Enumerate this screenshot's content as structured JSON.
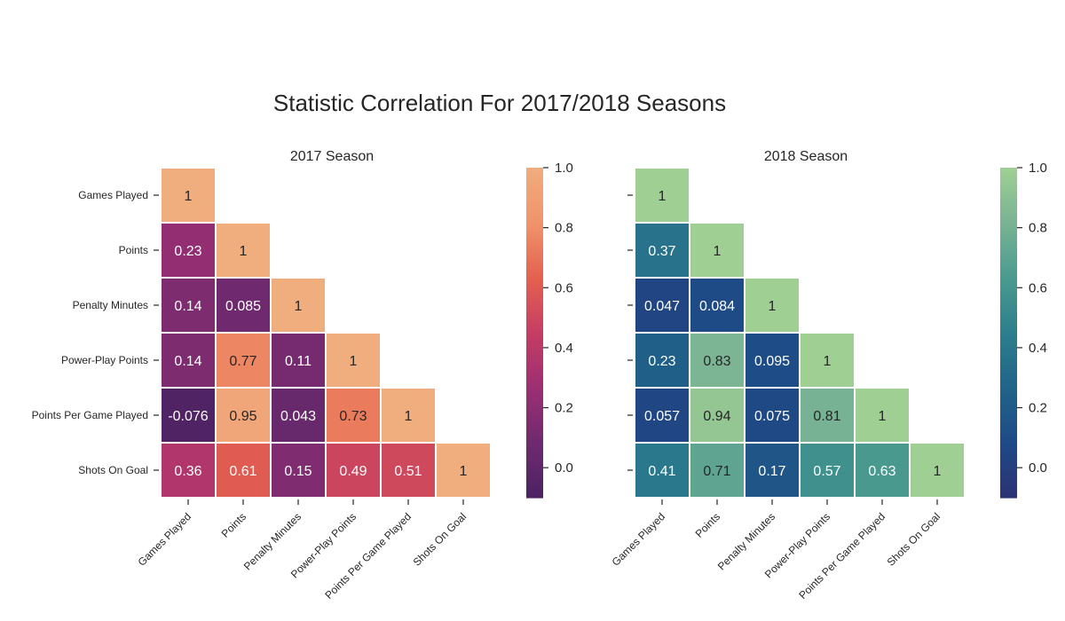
{
  "title": "Statistic Correlation For 2017/2018 Seasons",
  "labels": [
    "Games Played",
    "Points",
    "Penalty Minutes",
    "Power-Play Points",
    "Points Per Game Played",
    "Shots On Goal"
  ],
  "chart_data": [
    {
      "type": "heatmap",
      "title": "2017 Season",
      "colormap": "flare",
      "vmin": -0.1,
      "vmax": 1.0,
      "colorbar_ticks": [
        "0.0",
        "0.2",
        "0.4",
        "0.6",
        "0.8",
        "1.0"
      ],
      "colorbar_tick_values": [
        0.0,
        0.2,
        0.4,
        0.6,
        0.8,
        1.0
      ],
      "values": [
        [
          1
        ],
        [
          0.23,
          1
        ],
        [
          0.14,
          0.085,
          1
        ],
        [
          0.14,
          0.77,
          0.11,
          1
        ],
        [
          -0.076,
          0.95,
          0.043,
          0.73,
          1
        ],
        [
          0.36,
          0.61,
          0.15,
          0.49,
          0.51,
          1
        ]
      ],
      "display": [
        [
          "1"
        ],
        [
          "0.23",
          "1"
        ],
        [
          "0.14",
          "0.085",
          "1"
        ],
        [
          "0.14",
          "0.77",
          "0.11",
          "1"
        ],
        [
          "-0.076",
          "0.95",
          "0.043",
          "0.73",
          "1"
        ],
        [
          "0.36",
          "0.61",
          "0.15",
          "0.49",
          "0.51",
          "1"
        ]
      ]
    },
    {
      "type": "heatmap",
      "title": "2018 Season",
      "colormap": "crest",
      "vmin": -0.1,
      "vmax": 1.0,
      "colorbar_ticks": [
        "0.0",
        "0.2",
        "0.4",
        "0.6",
        "0.8",
        "1.0"
      ],
      "colorbar_tick_values": [
        0.0,
        0.2,
        0.4,
        0.6,
        0.8,
        1.0
      ],
      "values": [
        [
          1
        ],
        [
          0.37,
          1
        ],
        [
          0.047,
          0.084,
          1
        ],
        [
          0.23,
          0.83,
          0.095,
          1
        ],
        [
          0.057,
          0.94,
          0.075,
          0.81,
          1
        ],
        [
          0.41,
          0.71,
          0.17,
          0.57,
          0.63,
          1
        ]
      ],
      "display": [
        [
          "1"
        ],
        [
          "0.37",
          "1"
        ],
        [
          "0.047",
          "0.084",
          "1"
        ],
        [
          "0.23",
          "0.83",
          "0.095",
          "1"
        ],
        [
          "0.057",
          "0.94",
          "0.075",
          "0.81",
          "1"
        ],
        [
          "0.41",
          "0.71",
          "0.17",
          "0.57",
          "0.63",
          "1"
        ]
      ]
    }
  ]
}
